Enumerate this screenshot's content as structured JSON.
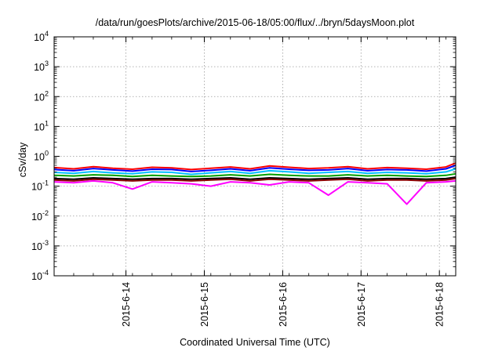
{
  "chart_data": {
    "type": "line",
    "title": "/data/run/goesPlots/archive/2015-06-18/05:00/flux/../bryn/5daysMoon.plot",
    "xlabel": "Coordinated Universal Time (UTC)",
    "ylabel": "cSv/day",
    "yscale": "log",
    "ylim": [
      0.0001,
      10000
    ],
    "xlim": [
      "2015-06-13 02:00",
      "2015-06-18 05:00"
    ],
    "grid": true,
    "legend": "none",
    "ytick_labels": [
      {
        "base": "10",
        "exp": "-4"
      },
      {
        "base": "10",
        "exp": "-3"
      },
      {
        "base": "10",
        "exp": "-2"
      },
      {
        "base": "10",
        "exp": "-1"
      },
      {
        "base": "10",
        "exp": "0"
      },
      {
        "base": "10",
        "exp": "1"
      },
      {
        "base": "10",
        "exp": "2"
      },
      {
        "base": "10",
        "exp": "3"
      },
      {
        "base": "10",
        "exp": "4"
      }
    ],
    "xtick_labels": [
      "2015-6-14",
      "2015-6-15",
      "2015-6-16",
      "2015-6-17",
      "2015-6-18"
    ],
    "x": [
      "2015-06-13 02:00",
      "2015-06-13 08:00",
      "2015-06-13 14:00",
      "2015-06-13 20:00",
      "2015-06-14 02:00",
      "2015-06-14 08:00",
      "2015-06-14 14:00",
      "2015-06-14 20:00",
      "2015-06-15 02:00",
      "2015-06-15 08:00",
      "2015-06-15 14:00",
      "2015-06-15 20:00",
      "2015-06-16 02:00",
      "2015-06-16 08:00",
      "2015-06-16 14:00",
      "2015-06-16 20:00",
      "2015-06-17 02:00",
      "2015-06-17 08:00",
      "2015-06-17 14:00",
      "2015-06-17 20:00",
      "2015-06-18 02:00",
      "2015-06-18 05:00"
    ],
    "series": [
      {
        "color": "#ff0000",
        "values": [
          0.42,
          0.38,
          0.45,
          0.4,
          0.37,
          0.43,
          0.41,
          0.36,
          0.4,
          0.44,
          0.38,
          0.48,
          0.43,
          0.39,
          0.41,
          0.45,
          0.38,
          0.42,
          0.4,
          0.37,
          0.44,
          0.6
        ]
      },
      {
        "color": "#0000ff",
        "values": [
          0.36,
          0.33,
          0.39,
          0.35,
          0.32,
          0.37,
          0.36,
          0.31,
          0.34,
          0.38,
          0.33,
          0.41,
          0.37,
          0.34,
          0.35,
          0.39,
          0.33,
          0.36,
          0.35,
          0.32,
          0.38,
          0.5
        ]
      },
      {
        "color": "#00bfff",
        "values": [
          0.29,
          0.27,
          0.31,
          0.28,
          0.26,
          0.3,
          0.29,
          0.25,
          0.28,
          0.31,
          0.27,
          0.33,
          0.3,
          0.27,
          0.29,
          0.31,
          0.27,
          0.29,
          0.28,
          0.26,
          0.3,
          0.38
        ]
      },
      {
        "color": "#00a000",
        "values": [
          0.23,
          0.22,
          0.24,
          0.23,
          0.21,
          0.23,
          0.22,
          0.21,
          0.22,
          0.24,
          0.22,
          0.25,
          0.23,
          0.22,
          0.22,
          0.24,
          0.22,
          0.23,
          0.22,
          0.21,
          0.23,
          0.26
        ]
      },
      {
        "color": "#000000",
        "values": [
          0.18,
          0.17,
          0.19,
          0.18,
          0.17,
          0.18,
          0.18,
          0.17,
          0.18,
          0.19,
          0.17,
          0.19,
          0.18,
          0.17,
          0.18,
          0.19,
          0.17,
          0.18,
          0.18,
          0.17,
          0.18,
          0.2
        ]
      },
      {
        "color": "#8b0000",
        "values": [
          0.16,
          0.15,
          0.17,
          0.16,
          0.15,
          0.16,
          0.16,
          0.15,
          0.16,
          0.17,
          0.15,
          0.17,
          0.16,
          0.15,
          0.16,
          0.17,
          0.15,
          0.16,
          0.16,
          0.15,
          0.16,
          0.18
        ]
      },
      {
        "color": "#ff00ff",
        "values": [
          0.14,
          0.13,
          0.15,
          0.13,
          0.08,
          0.14,
          0.13,
          0.12,
          0.1,
          0.14,
          0.13,
          0.11,
          0.14,
          0.13,
          0.05,
          0.14,
          0.13,
          0.12,
          0.025,
          0.13,
          0.14,
          0.15
        ]
      }
    ]
  }
}
